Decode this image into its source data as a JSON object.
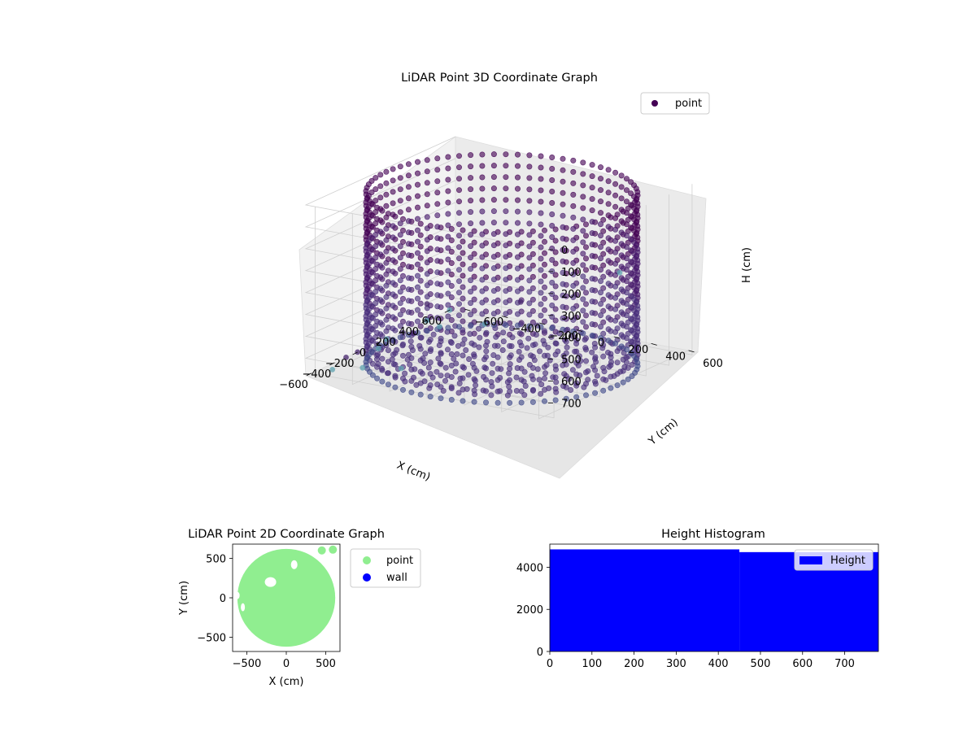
{
  "chart_data": [
    {
      "type": "scatter",
      "projection": "3d",
      "title": "LiDAR Point 3D Coordinate Graph",
      "xlabel": "X (cm)",
      "ylabel": "Y (cm)",
      "zlabel": "H (cm)",
      "xticks": [
        "−600",
        "−400",
        "−200",
        "0",
        "200",
        "400",
        "600"
      ],
      "yticks": [
        "−600",
        "−400",
        "−200",
        "0",
        "200",
        "400",
        "600"
      ],
      "zticks": [
        "0",
        "100",
        "200",
        "300",
        "400",
        "500",
        "600",
        "700"
      ],
      "xlim": [
        -650,
        650
      ],
      "ylim": [
        -650,
        650
      ],
      "zlim": [
        780,
        0
      ],
      "z_inverted": true,
      "grid": true,
      "legend": {
        "position": "upper-right",
        "entries": [
          "point"
        ]
      },
      "colormap": "viridis",
      "colors": {
        "point": "#440154",
        "marker_dark": "#47266e",
        "marker_light": "#5fa3b0"
      },
      "series": [
        {
          "name": "point",
          "description_ring": {
            "radius": 620,
            "h_range": [
              0,
              780
            ],
            "angular_steps": 72,
            "height_steps": 16
          },
          "outliers": [
            [
              -650,
              0,
              350
            ],
            [
              -550,
              -200,
              700
            ],
            [
              -500,
              -600,
              780
            ],
            [
              -300,
              -650,
              780
            ],
            [
              -100,
              -600,
              780
            ],
            [
              50,
              -650,
              780
            ],
            [
              200,
              -600,
              780
            ],
            [
              350,
              -550,
              780
            ],
            [
              500,
              -400,
              780
            ],
            [
              650,
              -300,
              700
            ],
            [
              700,
              200,
              500
            ],
            [
              600,
              -650,
              780
            ],
            [
              -200,
              -650,
              780
            ],
            [
              400,
              -650,
              780
            ],
            [
              -400,
              -500,
              780
            ]
          ]
        }
      ]
    },
    {
      "type": "scatter",
      "title": "LiDAR Point 2D Coordinate Graph",
      "xlabel": "X (cm)",
      "ylabel": "Y (cm)",
      "xticks": [
        "−500",
        "0",
        "500"
      ],
      "yticks": [
        "500",
        "0",
        "−500"
      ],
      "xlim": [
        -680,
        680
      ],
      "ylim": [
        -680,
        680
      ],
      "legend": {
        "position": "outside-right",
        "entries": [
          "point",
          "wall"
        ]
      },
      "colors": {
        "point": "#90ee90",
        "wall": "#0000ff"
      },
      "series": [
        {
          "name": "point",
          "disc_radius": 620
        },
        {
          "name": "wall",
          "values": []
        }
      ]
    },
    {
      "type": "bar",
      "title": "Height Histogram",
      "xticks": [
        "0",
        "100",
        "200",
        "300",
        "400",
        "500",
        "600",
        "700"
      ],
      "yticks": [
        "0",
        "2000",
        "4000"
      ],
      "xlim": [
        0,
        780
      ],
      "ylim": [
        0,
        5100
      ],
      "legend": {
        "position": "upper-right",
        "entries": [
          "Height"
        ]
      },
      "colors": {
        "Height": "#0000ff"
      },
      "series": [
        {
          "name": "Height",
          "bins": [
            {
              "start": 0,
              "end": 450,
              "count": 4850
            },
            {
              "start": 450,
              "end": 780,
              "count": 4720
            }
          ]
        }
      ]
    }
  ]
}
